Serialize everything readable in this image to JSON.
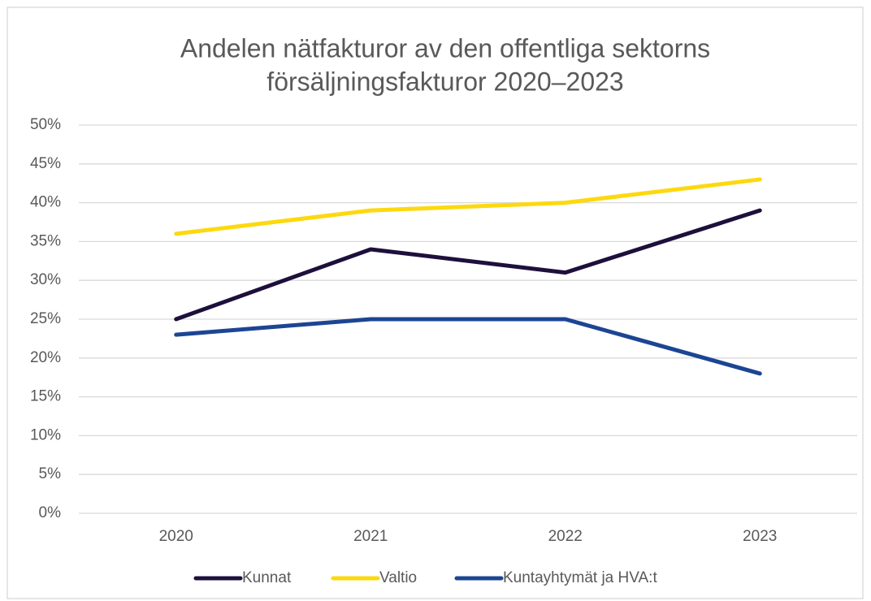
{
  "chart_data": {
    "type": "line",
    "title": [
      "Andelen nätfakturor av den offentliga sektorns",
      "försäljningsfakturor 2020–2023"
    ],
    "categories": [
      "2020",
      "2021",
      "2022",
      "2023"
    ],
    "series": [
      {
        "name": "Kunnat",
        "color": "#1e0f3c",
        "values": [
          25,
          34,
          31,
          39
        ]
      },
      {
        "name": "Valtio",
        "color": "#fcd90f",
        "values": [
          36,
          39,
          40,
          43
        ]
      },
      {
        "name": "Kuntayhtymät ja HVA:t",
        "color": "#1c4593",
        "values": [
          23,
          25,
          25,
          18
        ]
      }
    ],
    "ylim": [
      0,
      50
    ],
    "yticks": [
      {
        "value": 0,
        "label": "0%"
      },
      {
        "value": 5,
        "label": "5%"
      },
      {
        "value": 10,
        "label": "10%"
      },
      {
        "value": 15,
        "label": "15%"
      },
      {
        "value": 20,
        "label": "20%"
      },
      {
        "value": 25,
        "label": "25%"
      },
      {
        "value": 30,
        "label": "30%"
      },
      {
        "value": 35,
        "label": "35%"
      },
      {
        "value": 40,
        "label": "40%"
      },
      {
        "value": 45,
        "label": "45%"
      },
      {
        "value": 50,
        "label": "50%"
      }
    ],
    "grid": true,
    "legend": "bottom"
  }
}
